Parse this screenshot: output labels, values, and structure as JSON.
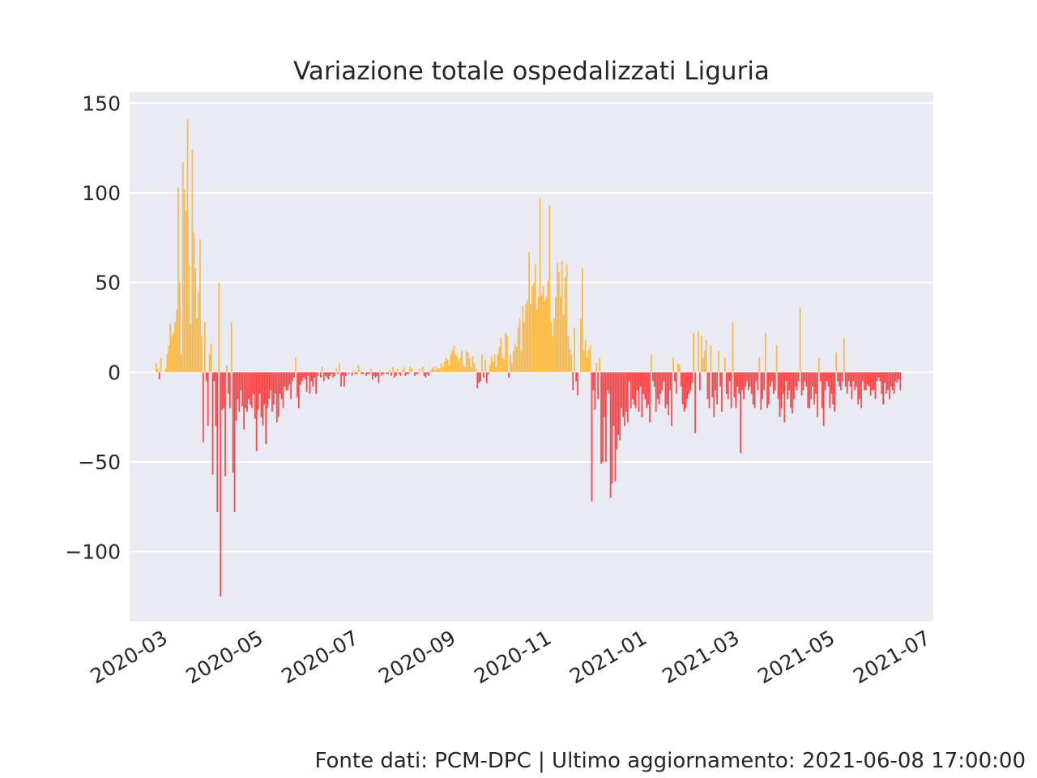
{
  "chart_data": {
    "type": "bar",
    "title": "Variazione totale ospedalizzati Liguria",
    "xlabel": "",
    "ylabel": "",
    "x_range": [
      "2020-02-08",
      "2021-07-05"
    ],
    "ylim": [
      -139,
      156
    ],
    "y_ticks": [
      150,
      100,
      50,
      0,
      -50,
      -100
    ],
    "y_tick_labels": [
      "150",
      "100",
      "50",
      "0",
      "−50",
      "−100"
    ],
    "x_ticks": [
      "2020-03-01",
      "2020-05-01",
      "2020-07-01",
      "2020-09-01",
      "2020-11-01",
      "2021-01-01",
      "2021-03-01",
      "2021-05-01",
      "2021-07-01"
    ],
    "x_tick_labels": [
      "2020-03",
      "2020-05",
      "2020-07",
      "2020-09",
      "2020-11",
      "2021-01",
      "2021-03",
      "2021-05",
      "2021-07"
    ],
    "grid": true,
    "colors": {
      "positive": "#ffa500",
      "negative": "#ff0000",
      "background": "#eaeaf2",
      "grid": "#ffffff"
    },
    "series": [
      {
        "values_by_week": [
          [
            5,
            2,
            -4,
            8,
            0,
            0,
            2
          ],
          [
            10,
            15,
            27,
            20,
            22,
            28,
            35
          ],
          [
            103,
            50,
            10,
            117,
            102,
            90,
            141
          ],
          [
            60,
            27,
            124,
            78,
            58,
            30,
            45
          ],
          [
            74,
            20,
            -39,
            28,
            -5,
            -30,
            10
          ],
          [
            16,
            -57,
            -5,
            -30,
            -78,
            50,
            -125
          ],
          [
            -21,
            -20,
            -58,
            4,
            -12,
            -20,
            28
          ],
          [
            -56,
            -78,
            -27,
            -15,
            -22,
            -10,
            -19
          ],
          [
            -32,
            -20,
            -22,
            -15,
            -18,
            -20,
            -12
          ],
          [
            -26,
            -44,
            -21,
            -12,
            -25,
            -30,
            -18
          ],
          [
            -40,
            -20,
            -15,
            -10,
            -22,
            -18,
            -12
          ],
          [
            -28,
            -25,
            -12,
            -15,
            -20,
            -8,
            -10
          ],
          [
            -10,
            -7,
            -15,
            -5,
            -3,
            8,
            -14
          ],
          [
            -20,
            -7,
            -5,
            -3,
            -4,
            -11,
            -2
          ],
          [
            -12,
            -5,
            -8,
            -3,
            -12,
            -2,
            0
          ],
          [
            -3,
            3,
            -5,
            -2,
            -3,
            -4,
            -2
          ],
          [
            -1,
            -3,
            -2,
            2,
            -1,
            5,
            -8
          ],
          [
            -2,
            -8,
            -2,
            0,
            -1,
            0,
            -2
          ],
          [
            1,
            -1,
            -1,
            4,
            1,
            -1,
            -1
          ],
          [
            0,
            -2,
            -1,
            -1,
            2,
            -4,
            -2
          ],
          [
            -3,
            -2,
            -6,
            1,
            -2,
            -1,
            0
          ],
          [
            -1,
            -1,
            1,
            -2,
            3,
            -3,
            -2
          ],
          [
            2,
            -1,
            -2,
            1,
            3,
            -2,
            -1
          ],
          [
            -1,
            3,
            2,
            0,
            -2,
            -1,
            -1
          ],
          [
            2,
            0,
            3,
            -2,
            -3,
            -1,
            -2
          ],
          [
            1,
            2,
            3,
            1,
            3,
            2,
            2
          ],
          [
            5,
            3,
            6,
            8,
            7,
            4,
            10
          ],
          [
            12,
            15,
            10,
            9,
            6,
            8,
            12
          ],
          [
            4,
            3,
            12,
            11,
            8,
            3,
            9
          ],
          [
            5,
            2,
            -9,
            -6,
            -5,
            10,
            -3
          ],
          [
            7,
            -6,
            -1,
            4,
            9,
            6,
            10
          ],
          [
            3,
            10,
            14,
            19,
            8,
            7,
            22
          ],
          [
            20,
            -3,
            10,
            5,
            12,
            16,
            14
          ],
          [
            25,
            30,
            12,
            37,
            28,
            38,
            40
          ],
          [
            67,
            38,
            48,
            50,
            60,
            35,
            42
          ],
          [
            97,
            43,
            48,
            40,
            42,
            51,
            93
          ],
          [
            28,
            20,
            30,
            42,
            61,
            56,
            42
          ],
          [
            62,
            32,
            53,
            60,
            20,
            13,
            10
          ],
          [
            -10,
            25,
            -5,
            -13,
            0,
            30,
            58
          ],
          [
            12,
            18,
            8,
            12,
            15,
            -72,
            -10
          ],
          [
            -21,
            5,
            -15,
            8,
            -51,
            -50,
            -25
          ],
          [
            -50,
            -10,
            -12,
            -70,
            -62,
            -30,
            -61
          ],
          [
            -43,
            -35,
            -38,
            -20,
            -25,
            -30,
            -22
          ],
          [
            -28,
            -5,
            -20,
            -15,
            -18,
            -20,
            -10
          ],
          [
            -22,
            -8,
            -25,
            -12,
            -15,
            -20,
            -18
          ],
          [
            -28,
            10,
            -5,
            -8,
            -22,
            -15,
            -18
          ],
          [
            -12,
            -10,
            -5,
            -20,
            -18,
            -24,
            -10
          ],
          [
            -30,
            8,
            -5,
            -12,
            5,
            4,
            -8
          ],
          [
            -18,
            -22,
            -20,
            -15,
            -12,
            -10,
            -6
          ],
          [
            22,
            -34,
            0,
            23,
            -10,
            20,
            8
          ],
          [
            12,
            18,
            -15,
            -20,
            15,
            -14,
            -25
          ],
          [
            -10,
            -18,
            12,
            -8,
            -22,
            0,
            8
          ],
          [
            -12,
            -15,
            -5,
            -20,
            28,
            -14,
            -20
          ],
          [
            -8,
            -12,
            -45,
            -10,
            -15,
            -8,
            -5
          ],
          [
            -10,
            -8,
            -12,
            -18,
            -20,
            -5,
            -10
          ],
          [
            8,
            -21,
            -15,
            -10,
            22,
            -20,
            -18
          ],
          [
            -8,
            -5,
            -12,
            -10,
            15,
            -15,
            -25
          ],
          [
            -20,
            -12,
            -28,
            -5,
            -15,
            -10,
            -20
          ],
          [
            -23,
            -15,
            -8,
            -10,
            -5,
            36,
            -13
          ],
          [
            -10,
            -5,
            -8,
            -20,
            -20,
            -15,
            -8
          ],
          [
            -18,
            -12,
            -25,
            8,
            -5,
            -20,
            -30
          ],
          [
            -10,
            -5,
            -8,
            -20,
            -12,
            -18,
            -22
          ],
          [
            11,
            -5,
            -8,
            -10,
            -5,
            19,
            -8
          ],
          [
            -12,
            -5,
            -8,
            -15,
            -5,
            -10,
            -8
          ],
          [
            -18,
            -15,
            -20,
            -5,
            -10,
            -10,
            -7
          ],
          [
            -8,
            -13,
            -10,
            -10,
            -15,
            -5,
            -3
          ],
          [
            -5,
            -12,
            -18,
            -6,
            -12,
            -10,
            -15
          ],
          [
            -8,
            -10,
            -12,
            -5,
            -6,
            -4,
            -10
          ]
        ]
      }
    ]
  },
  "footer": "Fonte dati: PCM-DPC | Ultimo aggiornamento: 2021-06-08 17:00:00"
}
